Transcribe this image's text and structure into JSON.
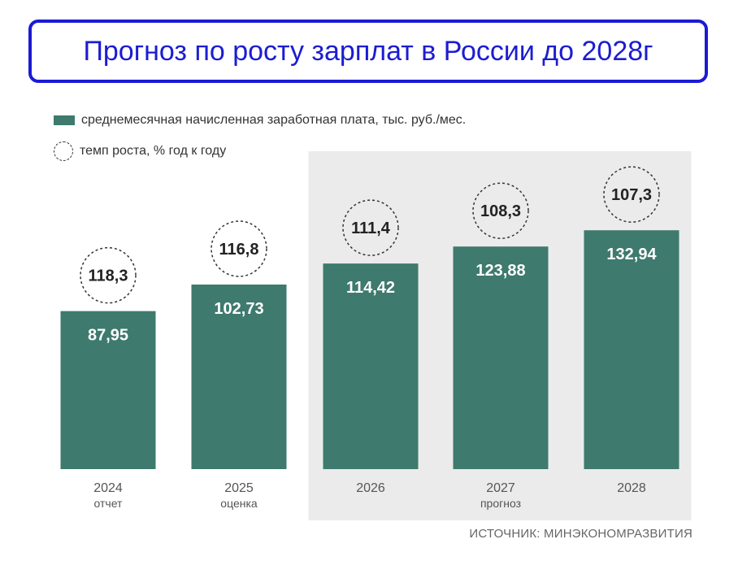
{
  "title": "Прогноз по росту зарплат в России до 2028г",
  "legend": {
    "bars": "среднемесячная начисленная заработная плата, тыс. руб./мес.",
    "circles": "темп роста, % год к году"
  },
  "source": "ИСТОЧНИК: МИНЭКОНОМРАЗВИТИЯ",
  "colors": {
    "bar": "#3e7a6e",
    "forecast_bg": "#ebebeb",
    "title": "#1c1cd2"
  },
  "chart_data": {
    "type": "bar",
    "categories": [
      "2024",
      "2025",
      "2026",
      "2027",
      "2028"
    ],
    "sublabels": [
      "отчет",
      "оценка",
      "",
      "прогноз",
      ""
    ],
    "values": [
      87.95,
      102.73,
      114.42,
      123.88,
      132.94
    ],
    "value_labels": [
      "87,95",
      "102,73",
      "114,42",
      "123,88",
      "132,94"
    ],
    "growth": [
      118.3,
      116.8,
      111.4,
      108.3,
      107.3
    ],
    "growth_labels": [
      "118,3",
      "116,8",
      "111,4",
      "108,3",
      "107,3"
    ],
    "forecast_categories": [
      "2026",
      "2027",
      "2028"
    ],
    "ylim": [
      0,
      140
    ],
    "grid": false,
    "legend_position": "top-left"
  }
}
